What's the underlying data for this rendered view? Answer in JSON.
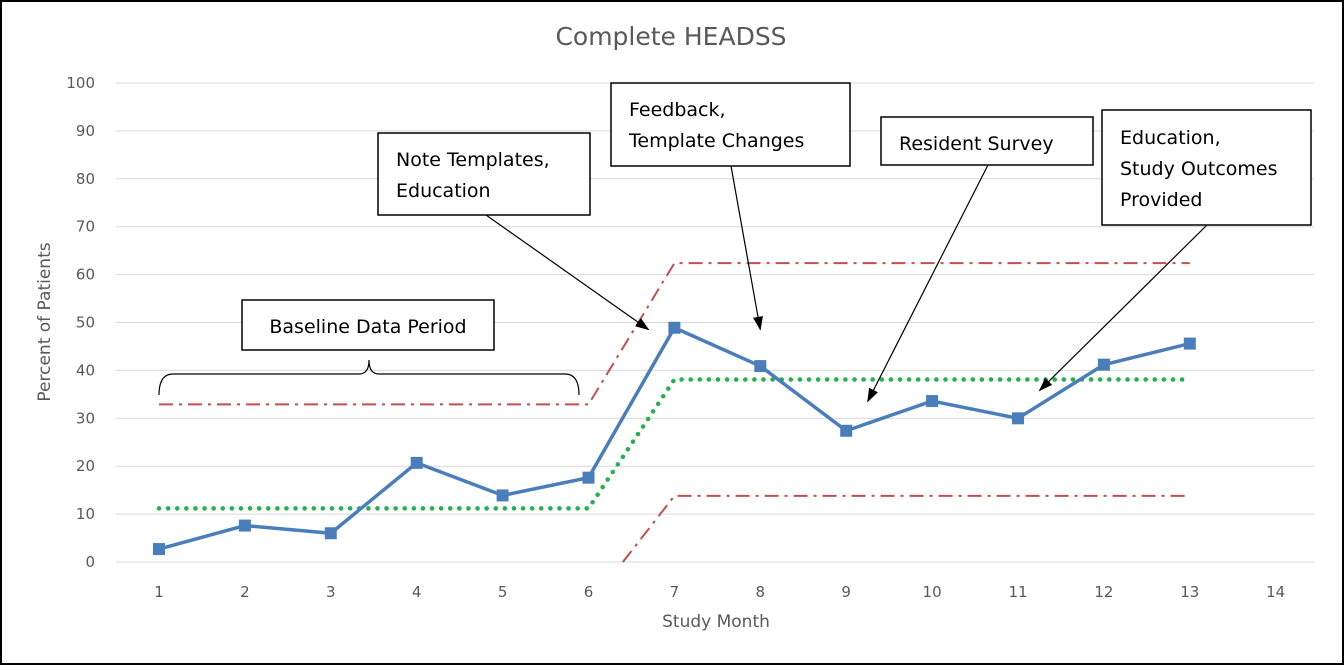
{
  "chart_data": {
    "type": "line",
    "title": "Complete HEADSS",
    "xlabel": "Study Month",
    "ylabel": "Percent of Patients",
    "x_ticks": [
      "1",
      "2",
      "3",
      "4",
      "5",
      "6",
      "7",
      "8",
      "9",
      "10",
      "11",
      "12",
      "13",
      "14"
    ],
    "y_ticks": [
      "0",
      "10",
      "20",
      "30",
      "40",
      "50",
      "60",
      "70",
      "80",
      "90",
      "100"
    ],
    "xlim": [
      1,
      14
    ],
    "ylim": [
      0,
      100
    ],
    "grid": "horizontal",
    "series": [
      {
        "color": "#4a7ebb",
        "style": "solid-with-square-markers",
        "x": [
          1,
          2,
          3,
          4,
          5,
          6,
          7,
          8,
          9,
          10,
          11,
          12,
          13
        ],
        "y": [
          2.7,
          7.6,
          6.0,
          20.7,
          13.9,
          17.6,
          48.9,
          40.9,
          27.4,
          33.6,
          30.0,
          41.2,
          45.6
        ]
      },
      {
        "color": "#22b14c",
        "style": "dotted",
        "x": [
          1,
          6,
          7,
          13
        ],
        "y": [
          11.2,
          11.2,
          38.1,
          38.1
        ]
      },
      {
        "color": "#c0504d",
        "style": "dash-dot",
        "x": [
          1,
          6,
          7,
          13
        ],
        "y": [
          32.9,
          32.9,
          62.4,
          62.4
        ]
      },
      {
        "color": "#c0504d",
        "style": "dash-dot",
        "x": [
          6.4,
          7,
          13
        ],
        "y": [
          0,
          13.8,
          13.8
        ]
      }
    ],
    "annotations": [
      {
        "label": "Baseline Data Period",
        "type": "bracket",
        "x_from": 1,
        "x_to": 6,
        "y": 38
      },
      {
        "label_lines": [
          "Note Templates,",
          "Education"
        ],
        "arrow_to": [
          6.7,
          48.5
        ]
      },
      {
        "label_lines": [
          "Feedback,",
          "Template Changes"
        ],
        "arrow_to": [
          8.0,
          48.5
        ]
      },
      {
        "label_lines": [
          "Resident Survey"
        ],
        "arrow_to": [
          9.25,
          33.5
        ]
      },
      {
        "label_lines": [
          "Education,",
          "Study Outcomes",
          "Provided"
        ],
        "arrow_to": [
          11.25,
          35.8
        ]
      }
    ]
  }
}
